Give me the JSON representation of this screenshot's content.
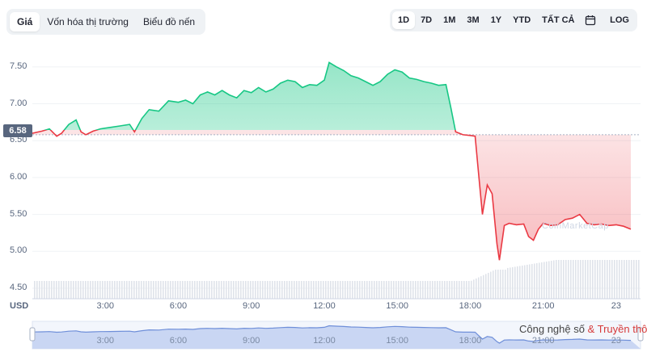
{
  "tabs": [
    "Giá",
    "Vốn hóa thị trường",
    "Biểu đồ nến"
  ],
  "active_tab": 0,
  "ranges": [
    "1D",
    "7D",
    "1M",
    "3M",
    "1Y",
    "YTD",
    "TẤT CẢ"
  ],
  "active_range": 0,
  "calendar_icon": "calendar-icon",
  "log_label": "LOG",
  "current_price": "6.58",
  "currency": "USD",
  "watermark": {
    "text": "Công nghệ số",
    "amp": "&",
    "text2": "Truyền thông"
  },
  "cmc_mark": "CoinMarketCap",
  "colors": {
    "up": "#16c784",
    "down": "#ea3943",
    "volume": "#e3e7ee",
    "nav": "#b7c8f0"
  },
  "chart_data": {
    "type": "area",
    "baseline": 6.58,
    "y_ticks": [
      "7.50",
      "7.00",
      "6.50",
      "6.00",
      "5.50",
      "5.00",
      "4.50"
    ],
    "ylim": [
      4.5,
      7.75
    ],
    "x_ticks": [
      "3:00",
      "6:00",
      "9:00",
      "12:00",
      "15:00",
      "18:00",
      "21:00",
      "23"
    ],
    "x_tick_hours": [
      3,
      6,
      9,
      12,
      15,
      18,
      21,
      24
    ],
    "xlim": [
      0,
      25
    ],
    "price_points": [
      [
        0,
        6.6
      ],
      [
        0.4,
        6.63
      ],
      [
        0.7,
        6.66
      ],
      [
        1.0,
        6.56
      ],
      [
        1.2,
        6.6
      ],
      [
        1.5,
        6.72
      ],
      [
        1.8,
        6.78
      ],
      [
        2.0,
        6.62
      ],
      [
        2.2,
        6.58
      ],
      [
        2.5,
        6.63
      ],
      [
        2.8,
        6.66
      ],
      [
        3.2,
        6.68
      ],
      [
        3.6,
        6.7
      ],
      [
        4.0,
        6.72
      ],
      [
        4.2,
        6.62
      ],
      [
        4.5,
        6.8
      ],
      [
        4.8,
        6.92
      ],
      [
        5.2,
        6.9
      ],
      [
        5.6,
        7.04
      ],
      [
        6.0,
        7.02
      ],
      [
        6.3,
        7.05
      ],
      [
        6.6,
        7.0
      ],
      [
        6.9,
        7.12
      ],
      [
        7.2,
        7.16
      ],
      [
        7.5,
        7.12
      ],
      [
        7.8,
        7.18
      ],
      [
        8.1,
        7.12
      ],
      [
        8.4,
        7.08
      ],
      [
        8.7,
        7.18
      ],
      [
        9.0,
        7.15
      ],
      [
        9.3,
        7.22
      ],
      [
        9.6,
        7.16
      ],
      [
        9.9,
        7.2
      ],
      [
        10.2,
        7.28
      ],
      [
        10.5,
        7.32
      ],
      [
        10.8,
        7.3
      ],
      [
        11.1,
        7.22
      ],
      [
        11.4,
        7.26
      ],
      [
        11.7,
        7.25
      ],
      [
        12.0,
        7.32
      ],
      [
        12.2,
        7.56
      ],
      [
        12.5,
        7.5
      ],
      [
        12.8,
        7.45
      ],
      [
        13.1,
        7.38
      ],
      [
        13.4,
        7.35
      ],
      [
        13.7,
        7.3
      ],
      [
        14.0,
        7.25
      ],
      [
        14.3,
        7.3
      ],
      [
        14.6,
        7.4
      ],
      [
        14.9,
        7.46
      ],
      [
        15.2,
        7.43
      ],
      [
        15.5,
        7.35
      ],
      [
        15.8,
        7.33
      ],
      [
        16.1,
        7.3
      ],
      [
        16.4,
        7.28
      ],
      [
        16.7,
        7.25
      ],
      [
        17.0,
        7.26
      ],
      [
        17.2,
        6.95
      ],
      [
        17.4,
        6.62
      ],
      [
        17.7,
        6.58
      ],
      [
        18.0,
        6.57
      ],
      [
        18.2,
        6.56
      ],
      [
        18.3,
        6.2
      ],
      [
        18.5,
        5.5
      ],
      [
        18.7,
        5.9
      ],
      [
        18.9,
        5.78
      ],
      [
        19.1,
        5.1
      ],
      [
        19.2,
        4.88
      ],
      [
        19.4,
        5.35
      ],
      [
        19.6,
        5.38
      ],
      [
        19.9,
        5.36
      ],
      [
        20.2,
        5.37
      ],
      [
        20.4,
        5.2
      ],
      [
        20.6,
        5.15
      ],
      [
        20.8,
        5.3
      ],
      [
        21.0,
        5.38
      ],
      [
        21.3,
        5.35
      ],
      [
        21.6,
        5.36
      ],
      [
        21.9,
        5.43
      ],
      [
        22.2,
        5.45
      ],
      [
        22.5,
        5.5
      ],
      [
        22.8,
        5.38
      ],
      [
        23.1,
        5.36
      ],
      [
        23.4,
        5.37
      ],
      [
        23.7,
        5.35
      ],
      [
        24.0,
        5.36
      ],
      [
        24.3,
        5.34
      ],
      [
        24.6,
        5.3
      ]
    ]
  }
}
